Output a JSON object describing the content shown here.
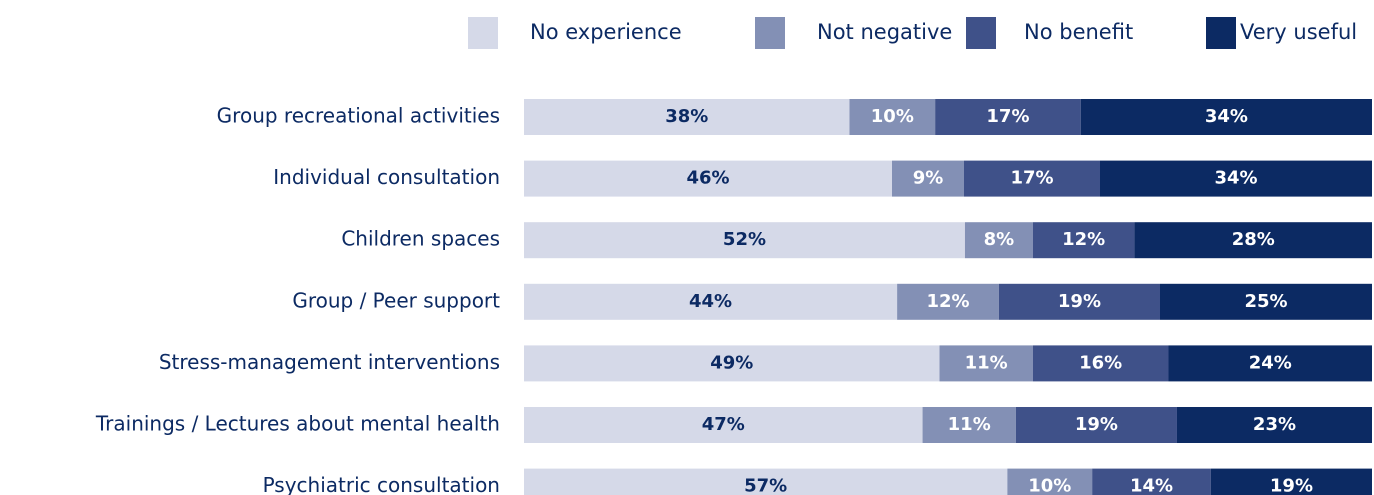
{
  "chart_data": {
    "type": "stacked-barh-100",
    "categories": [
      "Group recreational activities",
      "Individual consultation",
      "Children spaces",
      "Group / Peer support",
      "Stress-management interventions",
      "Trainings / Lectures about mental health",
      "Psychiatric consultation"
    ],
    "series": [
      {
        "name": "No experience",
        "color": "#d5d9e8",
        "label_color": "#0c2a63",
        "values": [
          38,
          46,
          52,
          44,
          49,
          47,
          57
        ],
        "value_labels": [
          "38%",
          "46%",
          "52%",
          "44%",
          "49%",
          "47%",
          "57%"
        ]
      },
      {
        "name": "Not negative",
        "color": "#8390b5",
        "label_color": "#ffffff",
        "values": [
          10,
          9,
          8,
          12,
          11,
          11,
          10
        ],
        "value_labels": [
          "10%",
          "9%",
          "8%",
          "12%",
          "11%",
          "11%",
          "10%"
        ]
      },
      {
        "name": "No benefit",
        "color": "#3f5189",
        "label_color": "#ffffff",
        "values": [
          17,
          17,
          12,
          19,
          16,
          19,
          14
        ],
        "value_labels": [
          "17%",
          "17%",
          "12%",
          "19%",
          "16%",
          "19%",
          "14%"
        ]
      },
      {
        "name": "Very useful",
        "color": "#0c2a63",
        "label_color": "#ffffff",
        "values": [
          34,
          34,
          28,
          25,
          24,
          23,
          19
        ],
        "value_labels": [
          "34%",
          "34%",
          "28%",
          "25%",
          "24%",
          "23%",
          "19%"
        ]
      }
    ],
    "legend": "top-right"
  }
}
